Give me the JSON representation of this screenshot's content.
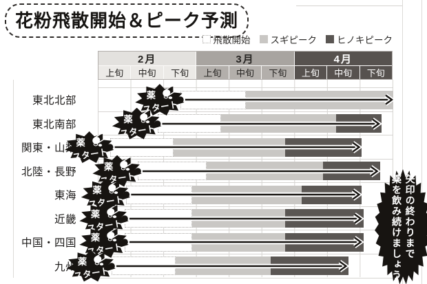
{
  "title": "花粉飛散開始＆ピーク予測",
  "legend": {
    "items": [
      {
        "id": "start",
        "label": "飛散開始"
      },
      {
        "id": "sugi",
        "label": "スギピーク"
      },
      {
        "id": "hinoki",
        "label": "ヒノキピーク"
      }
    ]
  },
  "months": [
    {
      "label": "2月",
      "periods": [
        "上旬",
        "中旬",
        "下旬"
      ]
    },
    {
      "label": "3月",
      "periods": [
        "上旬",
        "中旬",
        "下旬"
      ]
    },
    {
      "label": "4月",
      "periods": [
        "上旬",
        "中旬",
        "下旬"
      ]
    }
  ],
  "medicine_badge": {
    "line1": "薬",
    "line2": "スタート",
    "icon": "pill-capsule-icon"
  },
  "callout": {
    "line1": "矢印の終わりまで",
    "line2": "薬を飲み続けましょう"
  },
  "colors": {
    "dispersal_start_fill": "#ffffff",
    "sugi_peak": "#c9c7c4",
    "hinoki_peak": "#5a5653",
    "feb_header": "#e3e1de",
    "mar_header": "#a8a4a0",
    "apr_header": "#57524f",
    "grid_line": "#d6d4d1",
    "ink": "#171411"
  },
  "chart_data": {
    "type": "gantt",
    "title": "花粉飛散開始＆ピーク予測",
    "x_axis": {
      "unit": "month-third (旬); 0 = 2月上旬 start, 9 = 4月下旬 end",
      "min": 0,
      "max": 9,
      "tick_labels": [
        "2月上旬",
        "2月中旬",
        "2月下旬",
        "3月上旬",
        "3月中旬",
        "3月下旬",
        "4月上旬",
        "4月中旬",
        "4月下旬"
      ]
    },
    "series_legend": [
      "飛散開始",
      "スギピーク",
      "ヒノキピーク"
    ],
    "annotation": "矢印の終わりまで薬を飲み続けましょう（薬スタート＝矢印の始点）",
    "rows": [
      {
        "region": "東北北部",
        "dispersal_start": 2.5,
        "sugi_peak_start": 4.5,
        "hinoki_peak_start": null,
        "arrow_end": 9.0
      },
      {
        "region": "東北南部",
        "dispersal_start": 1.8,
        "sugi_peak_start": 3.75,
        "hinoki_peak_start": 7.25,
        "arrow_end": 8.6
      },
      {
        "region": "関東・山梨",
        "dispersal_start": 0.35,
        "sugi_peak_start": 2.3,
        "hinoki_peak_start": 5.7,
        "arrow_end": 8.0
      },
      {
        "region": "北陸・長野",
        "dispersal_start": 1.2,
        "sugi_peak_start": 3.3,
        "hinoki_peak_start": 6.85,
        "arrow_end": 8.55
      },
      {
        "region": "東海",
        "dispersal_start": 0.85,
        "sugi_peak_start": 2.85,
        "hinoki_peak_start": 6.2,
        "arrow_end": 8.0
      },
      {
        "region": "近畿",
        "dispersal_start": 0.8,
        "sugi_peak_start": 2.85,
        "hinoki_peak_start": 5.7,
        "arrow_end": 8.05
      },
      {
        "region": "中国・四国",
        "dispersal_start": 0.8,
        "sugi_peak_start": 2.85,
        "hinoki_peak_start": 5.7,
        "arrow_end": 8.05
      },
      {
        "region": "九州",
        "dispersal_start": 0.4,
        "sugi_peak_start": 2.35,
        "hinoki_peak_start": 5.25,
        "arrow_end": 7.6
      }
    ]
  }
}
